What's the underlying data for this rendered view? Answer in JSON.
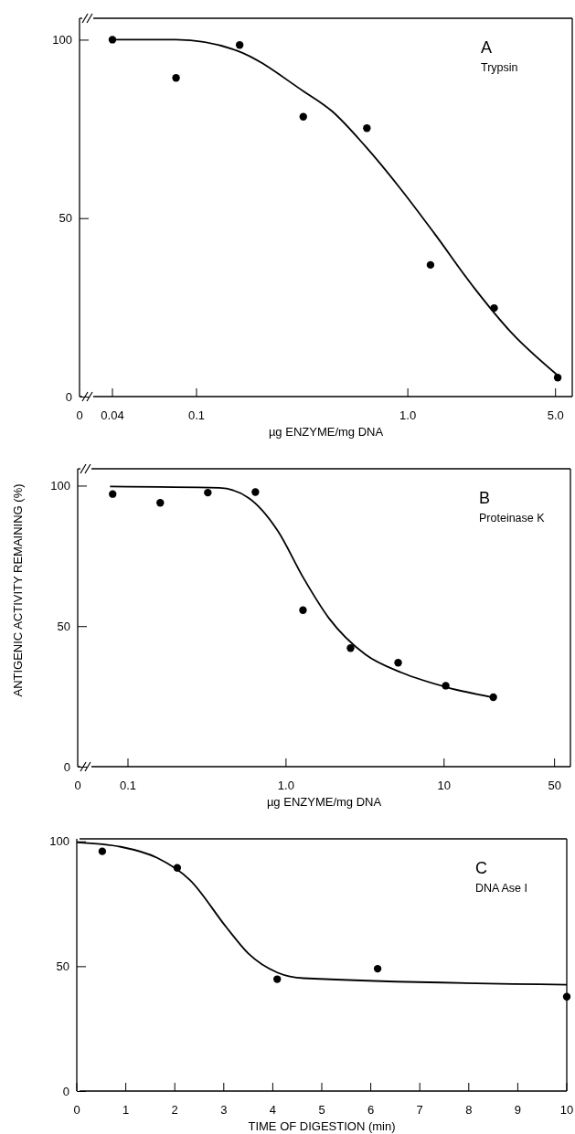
{
  "chart_data": [
    {
      "type": "scatter",
      "title": "A",
      "subtitle": "Trypsin",
      "xlabel": "µg ENZYME/mg DNA",
      "log": "x",
      "xlim": [
        0,
        6
      ],
      "xticks": [
        0,
        {
          "value": 0.04,
          "label": "0.04"
        },
        0.1,
        {
          "value": 1,
          "label": "1.0"
        },
        {
          "value": 5,
          "label": "5.0"
        }
      ],
      "ylim": [
        0,
        106
      ],
      "yticks": [
        0,
        50,
        100
      ],
      "series": [
        {
          "type": "scatter",
          "color": "#000000",
          "marker": "circle",
          "x": [
            0.04,
            0.08,
            0.16,
            0.32,
            0.64,
            1.28,
            2.56,
            5.12
          ],
          "values": [
            100,
            89.3,
            98.5,
            78.4,
            75.2,
            36.9,
            24.8,
            5.3
          ]
        },
        {
          "type": "line",
          "color": "#000000",
          "line_style": "solid",
          "x": [
            0.04,
            0.08,
            0.156,
            0.32,
            0.437,
            0.626,
            0.93,
            1.34,
            2.07,
            3.08,
            5.06
          ],
          "values": [
            100,
            100,
            96.9,
            85.6,
            80,
            70.3,
            58,
            45.6,
            30.3,
            18,
            6.2
          ]
        }
      ]
    },
    {
      "type": "scatter",
      "title": "B",
      "subtitle": "Proteinase K",
      "xlabel": "µg ENZYME/mg DNA",
      "ylabel": "ANTIGENIC ACTIVITY REMAINING (%)",
      "log": "x",
      "xlim": [
        0,
        63
      ],
      "xticks": [
        0,
        0.1,
        {
          "value": 1,
          "label": "1.0"
        },
        10,
        50
      ],
      "ylim": [
        0,
        106
      ],
      "yticks": [
        0,
        50,
        100
      ],
      "series": [
        {
          "type": "scatter",
          "color": "#000000",
          "marker": "circle",
          "x": [
            0.08,
            0.16,
            0.32,
            0.64,
            1.28,
            2.56,
            5.12,
            10.24,
            20.48
          ],
          "values": [
            97,
            93.9,
            97.5,
            97.7,
            55.7,
            42.2,
            37,
            28.8,
            24.7
          ]
        },
        {
          "type": "line",
          "color": "#000000",
          "line_style": "solid",
          "x": [
            0.077,
            0.378,
            0.58,
            0.887,
            1.29,
            1.87,
            3.18,
            5.42,
            10.5,
            20.5
          ],
          "values": [
            99.7,
            99.2,
            95.6,
            83.9,
            67.1,
            52.8,
            39.9,
            33.4,
            28.2,
            24.6
          ]
        }
      ]
    },
    {
      "type": "scatter",
      "title": "C",
      "subtitle": "DNA Ase I",
      "xlabel": "TIME OF DIGESTION (min)",
      "xlim": [
        0,
        10
      ],
      "xticks": [
        0,
        1,
        2,
        3,
        4,
        5,
        6,
        7,
        8,
        9,
        10
      ],
      "ylim": [
        0,
        101
      ],
      "yticks": [
        0,
        50,
        100
      ],
      "series": [
        {
          "type": "scatter",
          "color": "#000000",
          "marker": "circle",
          "x": [
            0.52,
            2.05,
            4.09,
            6.14,
            10
          ],
          "values": [
            96,
            89.4,
            44.8,
            49,
            37.8
          ]
        },
        {
          "type": "line",
          "color": "#000000",
          "line_style": "solid",
          "x": [
            0,
            0.9,
            1.64,
            2.31,
            3.06,
            3.5,
            4.1,
            4.63,
            10
          ],
          "values": [
            99.6,
            97.8,
            93.4,
            84.5,
            65.4,
            55.1,
            47.4,
            45.2,
            42.6
          ]
        }
      ]
    }
  ]
}
